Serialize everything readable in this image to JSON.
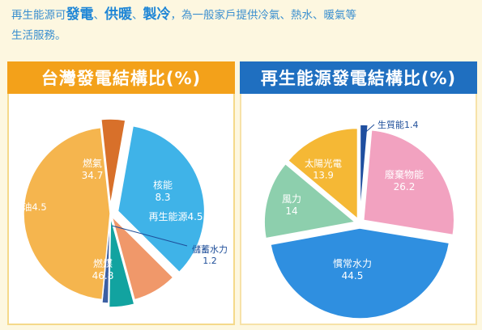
{
  "intro": {
    "p1": "再生能源可",
    "h1": "發電",
    "s1": "、",
    "h2": "供暖",
    "s2": "、",
    "h3": "製冷",
    "p2": "，為一般家戶提供冷氣、熱水、暖氣等",
    "p3": "生活服務。"
  },
  "chart_data": [
    {
      "type": "pie",
      "title": "台灣發電結構比(%)",
      "slices": [
        {
          "label": "燃氣",
          "value": 34.7,
          "color": "#3fb3e8"
        },
        {
          "label": "核能",
          "value": 8.3,
          "color": "#f0986a"
        },
        {
          "label": "再生能源",
          "value": 4.5,
          "color": "#12a3a0"
        },
        {
          "label": "儲蓄水力",
          "value": 1.2,
          "color": "#3c5fa3"
        },
        {
          "label": "燃煤",
          "value": 46.8,
          "color": "#f5b54e"
        },
        {
          "label": "燃油",
          "value": 4.5,
          "color": "#d8702a"
        }
      ]
    },
    {
      "type": "pie",
      "title": "再生能源發電結構比(%)",
      "slices": [
        {
          "label": "生質能",
          "value": 1.4,
          "color": "#1f4fa0"
        },
        {
          "label": "廢棄物能",
          "value": 26.2,
          "color": "#f2a2c0"
        },
        {
          "label": "慣常水力",
          "value": 44.5,
          "color": "#2f8fe0"
        },
        {
          "label": "風力",
          "value": 14.0,
          "color": "#8dcfad"
        },
        {
          "label": "太陽光電",
          "value": 13.9,
          "color": "#f5b835"
        }
      ]
    }
  ]
}
